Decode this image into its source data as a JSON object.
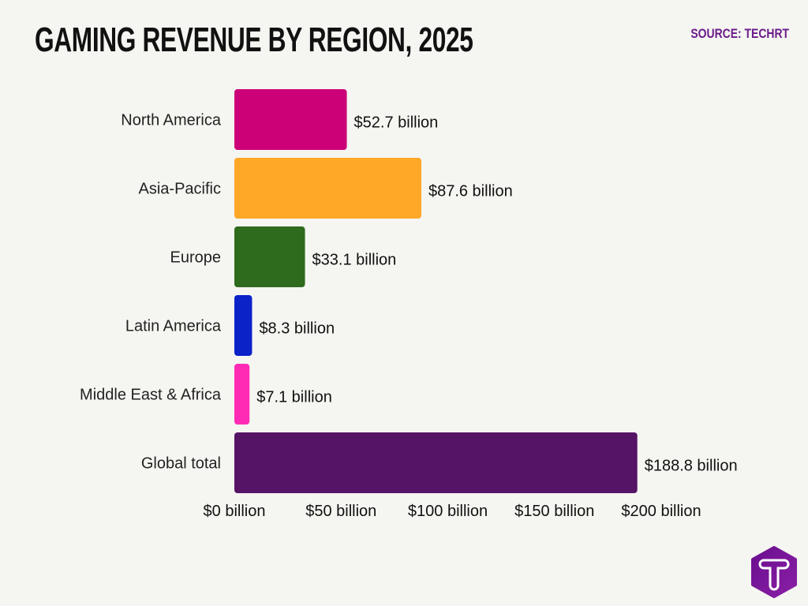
{
  "title": "GAMING REVENUE BY REGION, 2025",
  "source": "SOURCE: TECHRT",
  "logo_icon": "techrt-hexagon-t-logo",
  "chart_data": {
    "type": "bar",
    "orientation": "horizontal",
    "title": "GAMING REVENUE BY REGION, 2025",
    "categories": [
      "North America",
      "Asia-Pacific",
      "Europe",
      "Latin America",
      "Middle East & Africa",
      "Global total"
    ],
    "values": [
      52.7,
      87.6,
      33.1,
      8.3,
      7.1,
      188.8
    ],
    "data_labels": [
      "$52.7 billion",
      "$87.6 billion",
      "$33.1 billion",
      "$8.3 billion",
      "$7.1 billion",
      "$188.8 billion"
    ],
    "colors": [
      "#cc0077",
      "#ffa726",
      "#2e6b1c",
      "#0a22c8",
      "#ff2bb5",
      "#561466"
    ],
    "xlim": [
      0,
      200
    ],
    "xticks": [
      0,
      50,
      100,
      150,
      200
    ],
    "xtick_labels": [
      "$0 billion",
      "$50 billion",
      "$100 billion",
      "$150 billion",
      "$200 billion"
    ],
    "unit": "billion USD",
    "grid": false,
    "legend": "none"
  }
}
